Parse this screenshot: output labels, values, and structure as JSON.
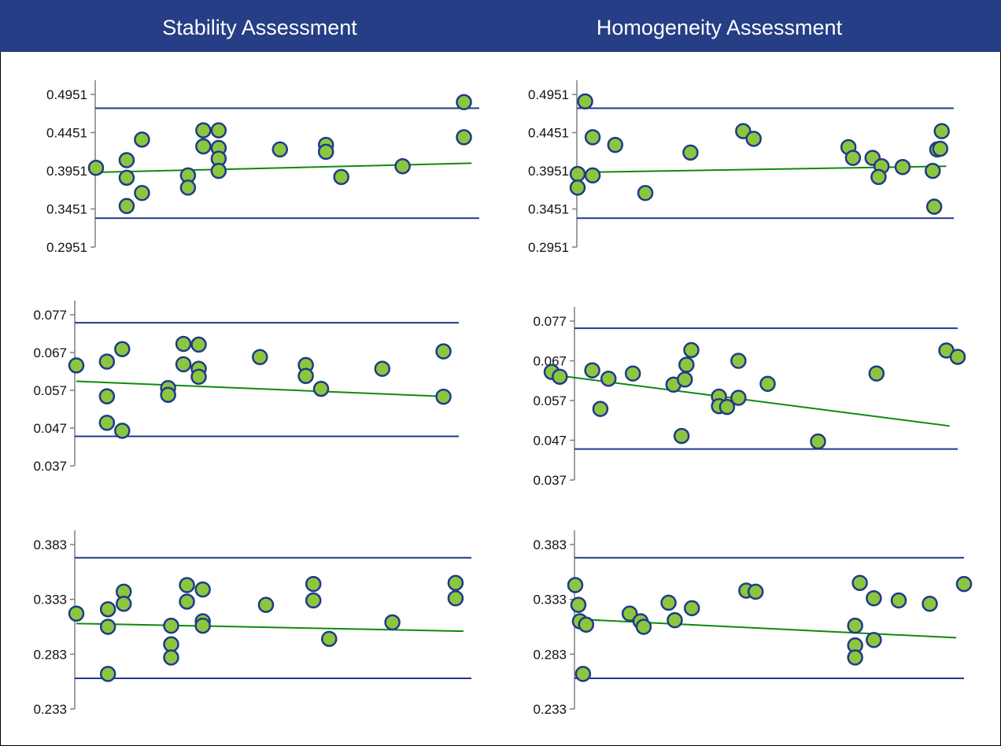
{
  "header": {
    "left_title": "Stability Assessment",
    "right_title": "Homogeneity Assessment"
  },
  "colors": {
    "header_bg": "#253E85",
    "limit_line": "#1F3A8A",
    "trend_line": "#0E8A0E",
    "point_fill": "#8CC63F",
    "point_stroke": "#1F3A8A"
  },
  "chart_data": [
    {
      "id": "stability-1",
      "type": "scatter",
      "title": "",
      "yticks": [
        "0.4951",
        "0.4451",
        "0.3951",
        "0.3451",
        "0.2951"
      ],
      "ylim": [
        0.2951,
        0.4951
      ],
      "xlim": [
        0,
        25
      ],
      "limits": [
        0.477,
        0.333
      ],
      "trend": [
        [
          0,
          0.393
        ],
        [
          24.5,
          0.405
        ]
      ],
      "points": [
        [
          0,
          0.399
        ],
        [
          2,
          0.409
        ],
        [
          2,
          0.386
        ],
        [
          2,
          0.349
        ],
        [
          3,
          0.436
        ],
        [
          3,
          0.366
        ],
        [
          6,
          0.389
        ],
        [
          6,
          0.373
        ],
        [
          7,
          0.448
        ],
        [
          7,
          0.427
        ],
        [
          8,
          0.448
        ],
        [
          8,
          0.425
        ],
        [
          8,
          0.411
        ],
        [
          8,
          0.395
        ],
        [
          12,
          0.423
        ],
        [
          15,
          0.429
        ],
        [
          15,
          0.42
        ],
        [
          16,
          0.387
        ],
        [
          20,
          0.401
        ],
        [
          24,
          0.485
        ],
        [
          24,
          0.439
        ]
      ]
    },
    {
      "id": "homogeneity-1",
      "type": "scatter",
      "title": "",
      "yticks": [
        "0.4951",
        "0.4451",
        "0.3951",
        "0.3451",
        "0.2951"
      ],
      "ylim": [
        0.2951,
        0.4951
      ],
      "xlim": [
        0,
        25
      ],
      "limits": [
        0.477,
        0.333
      ],
      "trend": [
        [
          0,
          0.393
        ],
        [
          24.5,
          0.401
        ]
      ],
      "points": [
        [
          0,
          0.391
        ],
        [
          0,
          0.373
        ],
        [
          0.5,
          0.486
        ],
        [
          1,
          0.439
        ],
        [
          1,
          0.389
        ],
        [
          2.5,
          0.429
        ],
        [
          4.5,
          0.366
        ],
        [
          7.5,
          0.419
        ],
        [
          11,
          0.447
        ],
        [
          11.7,
          0.437
        ],
        [
          18,
          0.426
        ],
        [
          18.3,
          0.412
        ],
        [
          19.6,
          0.412
        ],
        [
          20.2,
          0.401
        ],
        [
          20,
          0.387
        ],
        [
          21.6,
          0.4
        ],
        [
          23.6,
          0.395
        ],
        [
          23.7,
          0.348
        ],
        [
          23.9,
          0.423
        ],
        [
          24.1,
          0.424
        ],
        [
          24.2,
          0.447
        ]
      ]
    },
    {
      "id": "stability-2",
      "type": "scatter",
      "title": "",
      "yticks": [
        "0.077",
        "0.067",
        "0.057",
        "0.047",
        "0.037"
      ],
      "ylim": [
        0.037,
        0.077
      ],
      "xlim": [
        0,
        25
      ],
      "limits": [
        0.0749,
        0.0448
      ],
      "trend": [
        [
          0,
          0.0594
        ],
        [
          24.5,
          0.0553
        ]
      ],
      "points": [
        [
          0,
          0.0636
        ],
        [
          2,
          0.0646
        ],
        [
          2,
          0.0554
        ],
        [
          2,
          0.0484
        ],
        [
          3,
          0.0679
        ],
        [
          3,
          0.0463
        ],
        [
          6,
          0.0576
        ],
        [
          6,
          0.0558
        ],
        [
          7,
          0.0693
        ],
        [
          7,
          0.0639
        ],
        [
          8,
          0.0691
        ],
        [
          8,
          0.0627
        ],
        [
          8,
          0.0606
        ],
        [
          12,
          0.0658
        ],
        [
          15,
          0.0637
        ],
        [
          15,
          0.0608
        ],
        [
          16,
          0.0574
        ],
        [
          20,
          0.0627
        ],
        [
          24,
          0.0673
        ],
        [
          24,
          0.0553
        ]
      ]
    },
    {
      "id": "homogeneity-2",
      "type": "scatter",
      "title": "",
      "yticks": [
        "0.077",
        "0.067",
        "0.057",
        "0.047",
        "0.037"
      ],
      "ylim": [
        0.037,
        0.077
      ],
      "xlim": [
        0,
        25
      ],
      "limits": [
        0.0752,
        0.0448
      ],
      "trend": [
        [
          0,
          0.0635
        ],
        [
          24.5,
          0.0506
        ]
      ],
      "points": [
        [
          0,
          0.0642
        ],
        [
          0.5,
          0.063
        ],
        [
          2.5,
          0.0646
        ],
        [
          3.5,
          0.0625
        ],
        [
          3,
          0.0549
        ],
        [
          5,
          0.0638
        ],
        [
          7.5,
          0.061
        ],
        [
          8,
          0.0481
        ],
        [
          8.2,
          0.0623
        ],
        [
          8.3,
          0.066
        ],
        [
          8.6,
          0.0697
        ],
        [
          10.3,
          0.058
        ],
        [
          10.3,
          0.0556
        ],
        [
          10.8,
          0.0554
        ],
        [
          11.5,
          0.0577
        ],
        [
          11.5,
          0.067
        ],
        [
          13.3,
          0.0612
        ],
        [
          16.4,
          0.0467
        ],
        [
          20,
          0.0638
        ],
        [
          24.3,
          0.0696
        ],
        [
          25,
          0.068
        ]
      ]
    },
    {
      "id": "stability-3",
      "type": "scatter",
      "title": "",
      "yticks": [
        "0.383",
        "0.333",
        "0.283",
        "0.233"
      ],
      "ylim": [
        0.233,
        0.383
      ],
      "xlim": [
        0,
        25
      ],
      "limits": [
        0.371,
        0.261
      ],
      "trend": [
        [
          0,
          0.311
        ],
        [
          24.5,
          0.304
        ]
      ],
      "points": [
        [
          0,
          0.32
        ],
        [
          2,
          0.324
        ],
        [
          2,
          0.308
        ],
        [
          2,
          0.265
        ],
        [
          3,
          0.34
        ],
        [
          3,
          0.329
        ],
        [
          6,
          0.309
        ],
        [
          6,
          0.292
        ],
        [
          6,
          0.28
        ],
        [
          7,
          0.346
        ],
        [
          7,
          0.331
        ],
        [
          8,
          0.342
        ],
        [
          8,
          0.313
        ],
        [
          8,
          0.309
        ],
        [
          12,
          0.328
        ],
        [
          15,
          0.347
        ],
        [
          15,
          0.332
        ],
        [
          16,
          0.297
        ],
        [
          20,
          0.312
        ],
        [
          24,
          0.348
        ],
        [
          24,
          0.334
        ]
      ]
    },
    {
      "id": "homogeneity-3",
      "type": "scatter",
      "title": "",
      "yticks": [
        "0.383",
        "0.333",
        "0.283",
        "0.233"
      ],
      "ylim": [
        0.233,
        0.383
      ],
      "xlim": [
        0,
        25
      ],
      "limits": [
        0.371,
        0.261
      ],
      "trend": [
        [
          0,
          0.315
        ],
        [
          24.5,
          0.298
        ]
      ],
      "points": [
        [
          0,
          0.346
        ],
        [
          0.2,
          0.328
        ],
        [
          0.3,
          0.313
        ],
        [
          0.7,
          0.31
        ],
        [
          0.5,
          0.265
        ],
        [
          3.5,
          0.32
        ],
        [
          4.2,
          0.313
        ],
        [
          4.4,
          0.308
        ],
        [
          6,
          0.33
        ],
        [
          6.4,
          0.314
        ],
        [
          7.5,
          0.325
        ],
        [
          11,
          0.341
        ],
        [
          11.6,
          0.34
        ],
        [
          18,
          0.309
        ],
        [
          18,
          0.291
        ],
        [
          18,
          0.28
        ],
        [
          18.3,
          0.348
        ],
        [
          19.2,
          0.296
        ],
        [
          19.2,
          0.334
        ],
        [
          20.8,
          0.332
        ],
        [
          22.8,
          0.329
        ],
        [
          25,
          0.347
        ]
      ]
    }
  ]
}
